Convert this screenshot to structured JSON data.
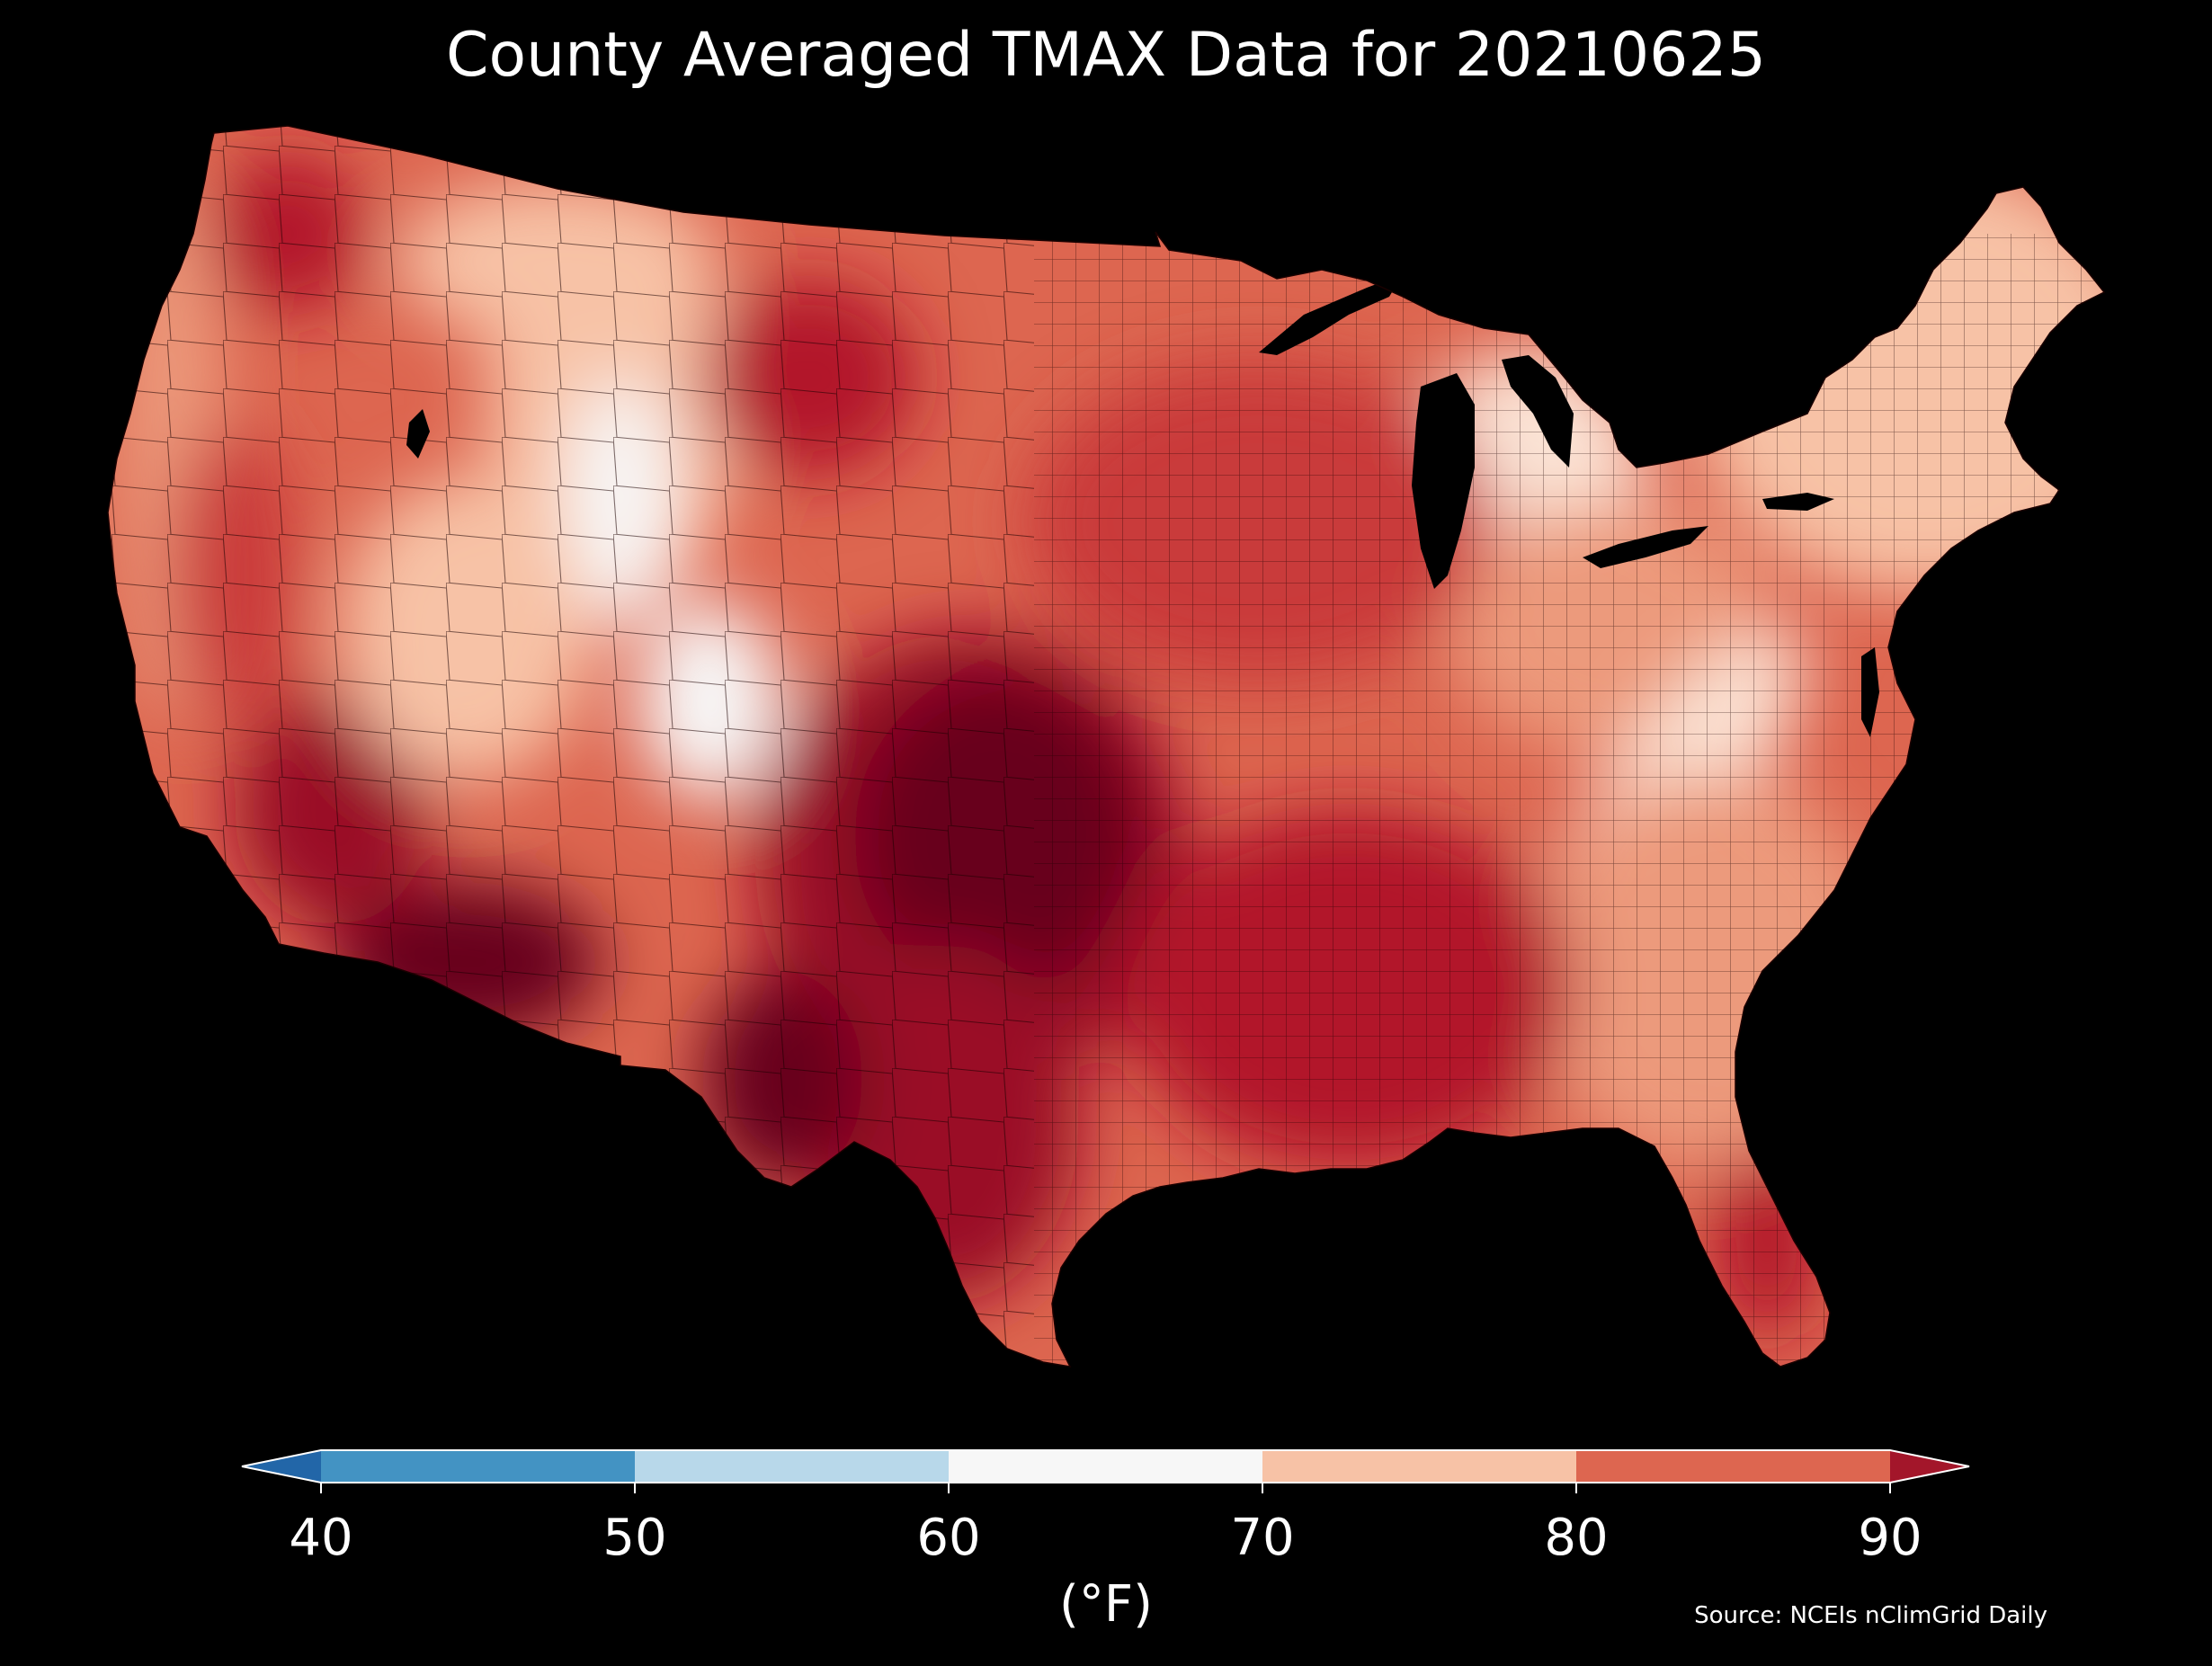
{
  "title": "County Averaged TMAX Data for 20210625",
  "colorbar": {
    "unit_label": "(°F)",
    "ticks": [
      "40",
      "50",
      "60",
      "70",
      "80",
      "90"
    ],
    "bins": [
      {
        "from": 40,
        "to": 50,
        "color": "#4393c3"
      },
      {
        "from": 50,
        "to": 60,
        "color": "#b8d8ea"
      },
      {
        "from": 60,
        "to": 70,
        "color": "#f7f7f7"
      },
      {
        "from": 70,
        "to": 80,
        "color": "#f7c2a6"
      },
      {
        "from": 80,
        "to": 90,
        "color": "#dd6650"
      }
    ],
    "extend_low_color": "#2266a8",
    "extend_high_color": "#a3162a",
    "range": [
      40,
      90
    ],
    "extend": "both"
  },
  "source": "Source: NCEIs nClimGrid Daily",
  "map": {
    "region": "contiguous United States, county level",
    "background": "#000000",
    "county_border_color": "#1a0000",
    "palette": {
      "very_hot": "#67001f",
      "hot_dark": "#9a1028",
      "hot": "#b2182b",
      "warm_red": "#c93a3a",
      "warm": "#dd6650",
      "mild_warm": "#ec9a7b",
      "mild": "#f7c2a6",
      "cool_mild": "#fbe4d6",
      "neutral": "#f7f7f7",
      "cool": "#d9e8f2",
      "lake": "#000000"
    }
  }
}
